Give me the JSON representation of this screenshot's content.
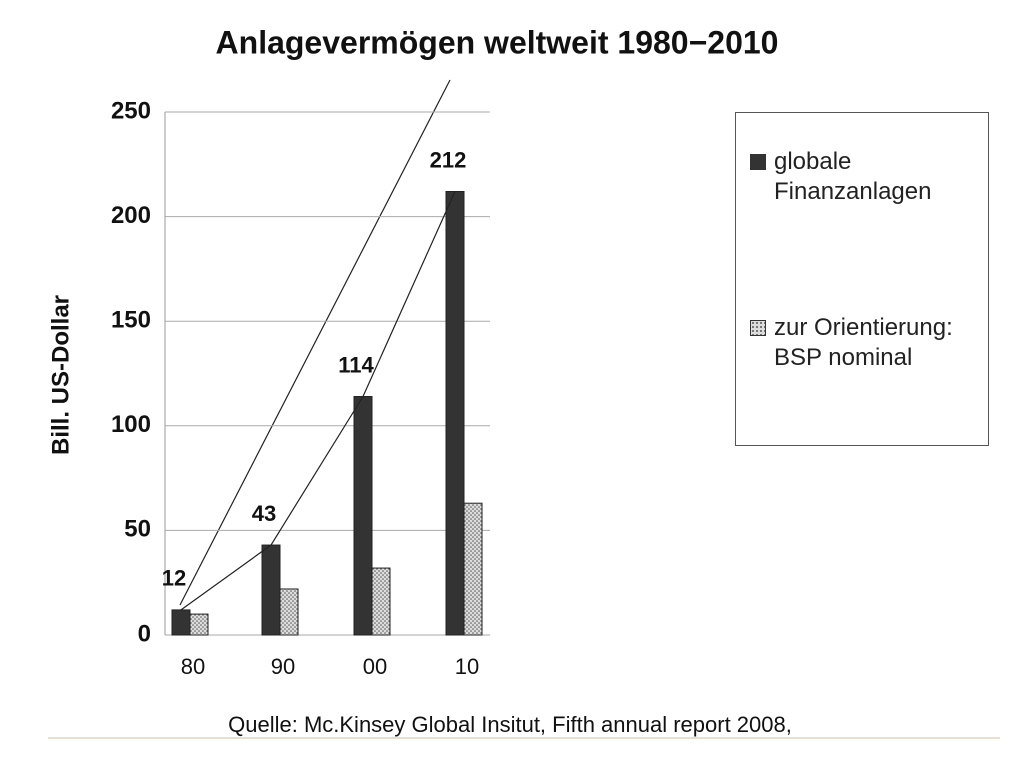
{
  "chart_data": {
    "type": "bar",
    "title": "Anlagevermögen weltweit 1980−2010",
    "y_label": "Bill. US-Dollar",
    "source": "Quelle: Mc.Kinsey Global Insitut, Fifth annual report 2008,",
    "categories": [
      "80",
      "90",
      "00",
      "10"
    ],
    "series": [
      {
        "name": "globale Finanzanlagen",
        "color": "#333333",
        "values": [
          12,
          43,
          114,
          212
        ],
        "show_labels": true
      },
      {
        "name": "zur Orientierung: BSP nominal",
        "color": "#dddddd",
        "pattern": "dots",
        "values": [
          10,
          22,
          32,
          63
        ]
      }
    ],
    "ylim": [
      0,
      250
    ],
    "yticks": [
      0,
      50,
      100,
      150,
      200,
      250
    ],
    "grid": true,
    "legend": "right"
  }
}
